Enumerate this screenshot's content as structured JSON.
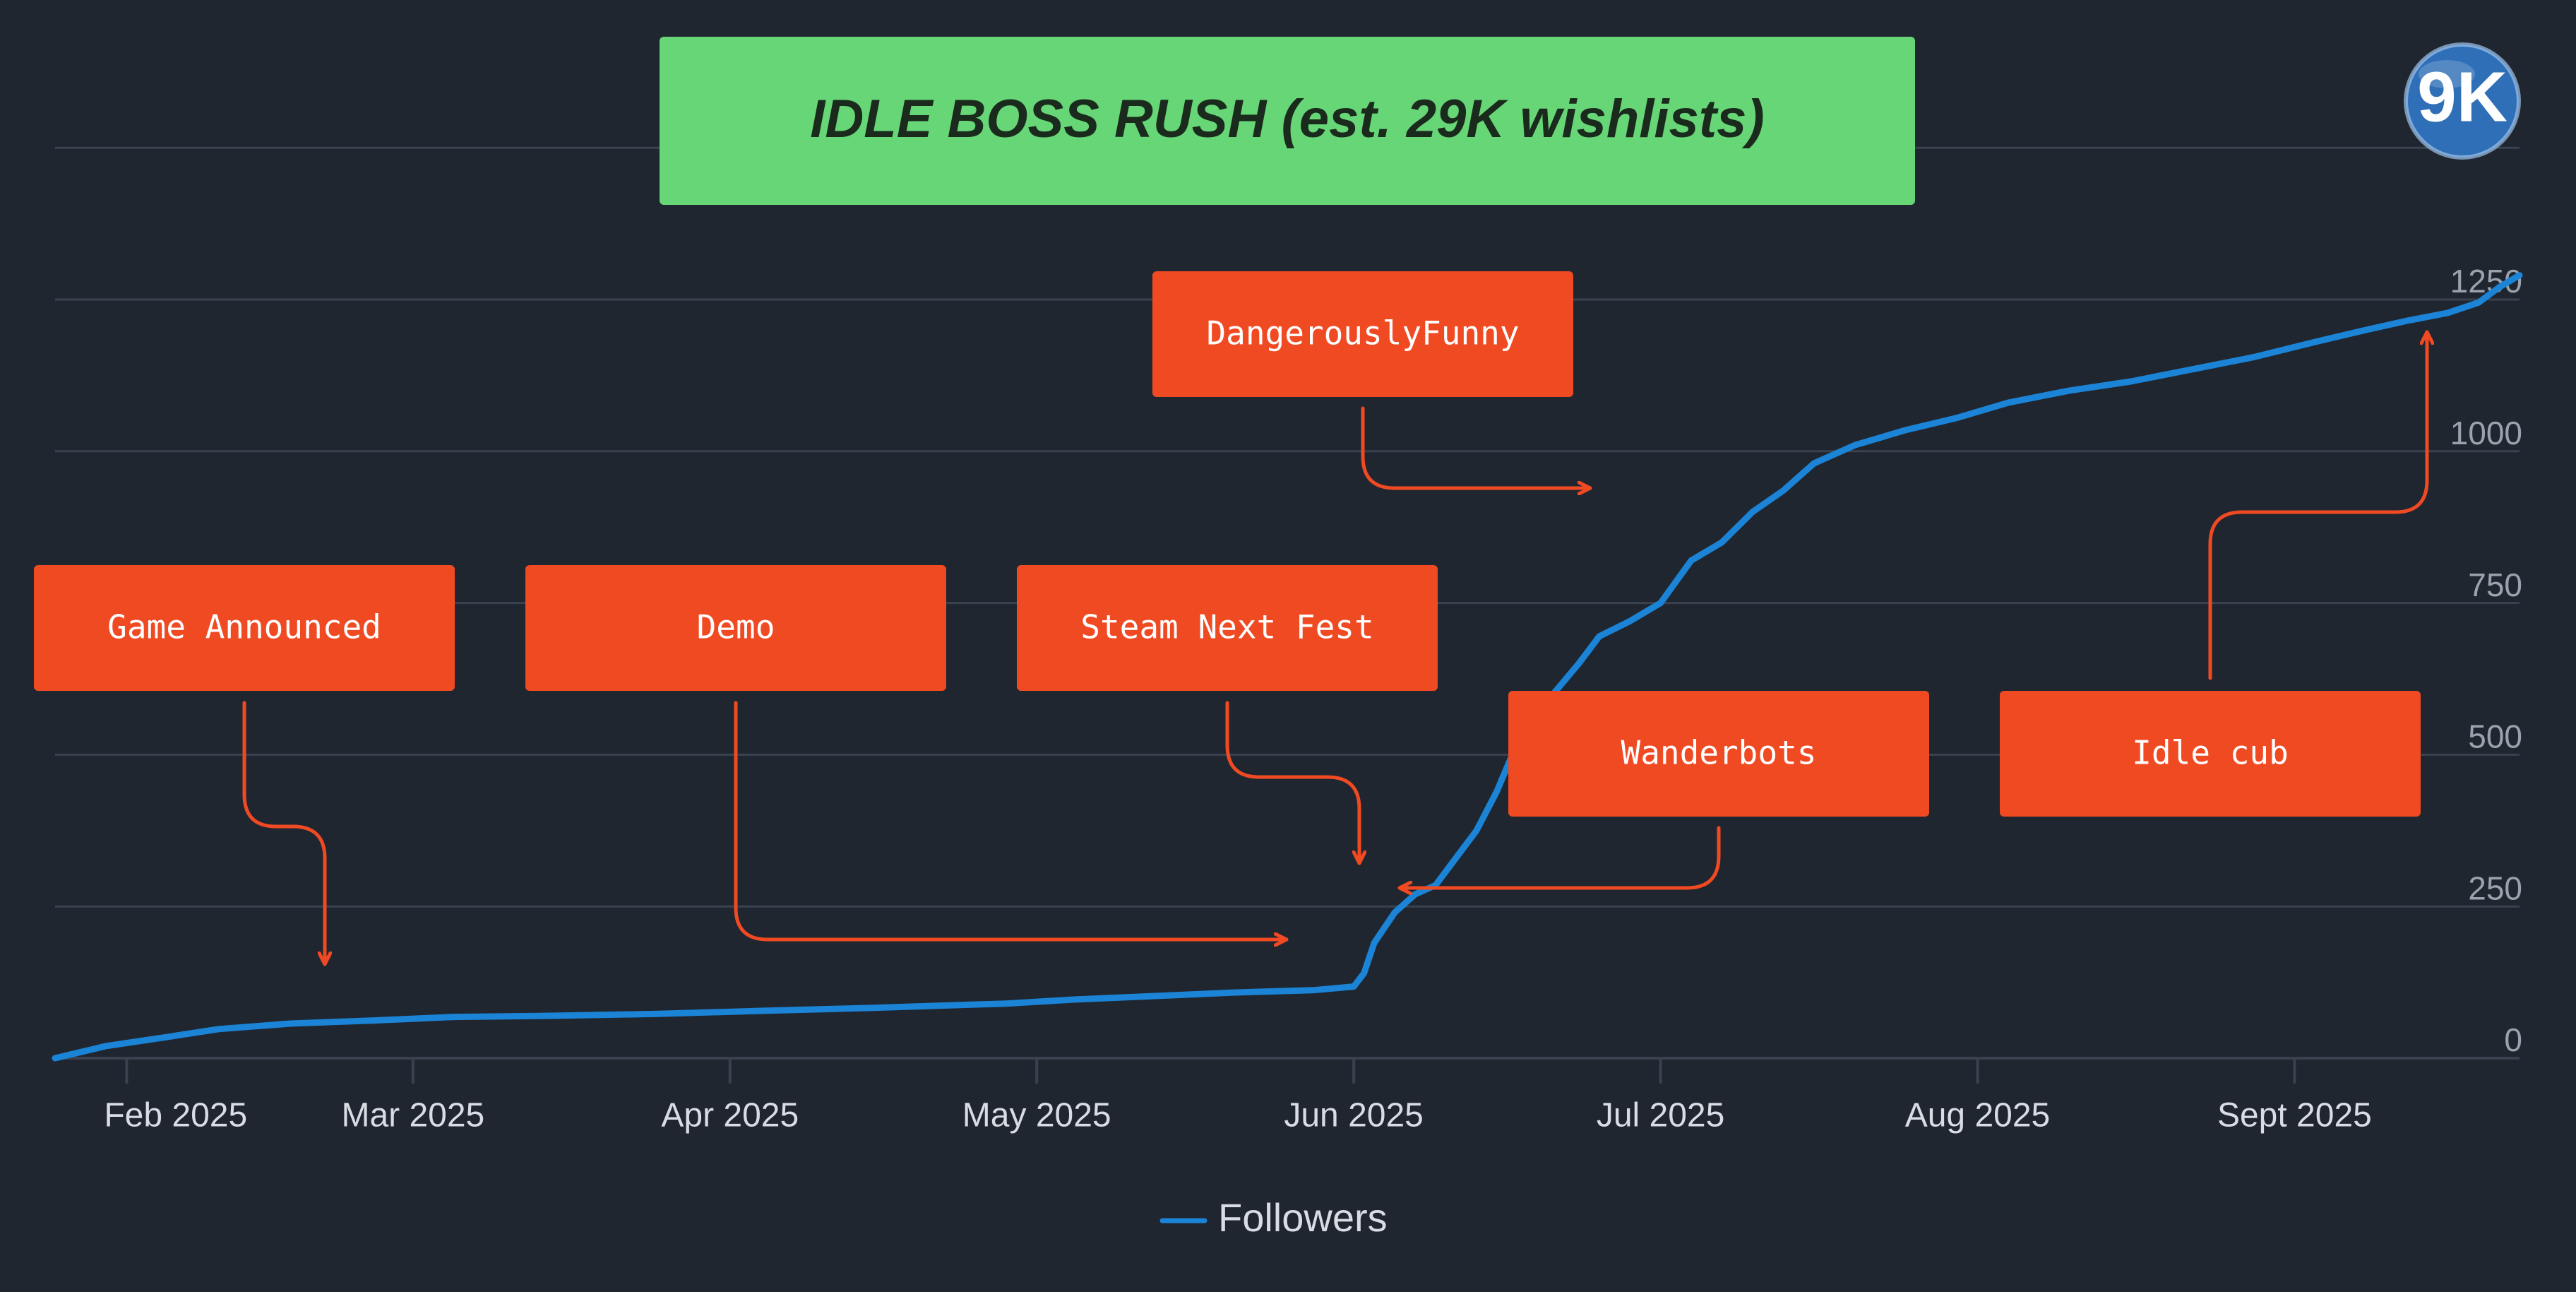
{
  "colors": {
    "background": "#1f2630",
    "grid": "#39424e",
    "axis_text": "#9aa3ad",
    "x_text": "#d8dde3",
    "line": "#1b84d6",
    "title_bg": "#67d677",
    "title_text": "#1a2a1c",
    "annotation_bg": "#f04a23",
    "annotation_text": "#ffffff",
    "arrow": "#f04a23"
  },
  "logo": {
    "text": "9K"
  },
  "chart_data": {
    "type": "line",
    "title": "IDLE BOSS RUSH (est. 29K wishlists)",
    "xlabel": "",
    "ylabel": "",
    "ylim": [
      0,
      1500
    ],
    "yticks": [
      0,
      250,
      500,
      750,
      1000,
      1250
    ],
    "ytick_labels": [
      "0",
      "250",
      "500",
      "750",
      "1000",
      "1250"
    ],
    "xlim": [
      "2025-01-25",
      "2025-09-23"
    ],
    "xtick_dates": [
      "2025-02-01",
      "2025-03-01",
      "2025-04-01",
      "2025-05-01",
      "2025-06-01",
      "2025-07-01",
      "2025-08-01",
      "2025-09-01"
    ],
    "xtick_labels": [
      "Feb 2025",
      "Mar 2025",
      "Apr 2025",
      "May 2025",
      "Jun 2025",
      "Jul 2025",
      "Aug 2025",
      "Sept 2025"
    ],
    "grid": true,
    "legend": {
      "position": "bottom-center",
      "entries": [
        "Followers"
      ]
    },
    "series": [
      {
        "name": "Followers",
        "points": [
          [
            "2025-01-25",
            0
          ],
          [
            "2025-01-30",
            20
          ],
          [
            "2025-02-05",
            35
          ],
          [
            "2025-02-10",
            48
          ],
          [
            "2025-02-17",
            57
          ],
          [
            "2025-02-25",
            62
          ],
          [
            "2025-03-05",
            68
          ],
          [
            "2025-03-15",
            70
          ],
          [
            "2025-03-25",
            73
          ],
          [
            "2025-04-04",
            78
          ],
          [
            "2025-04-15",
            83
          ],
          [
            "2025-04-28",
            90
          ],
          [
            "2025-05-05",
            97
          ],
          [
            "2025-05-12",
            102
          ],
          [
            "2025-05-20",
            108
          ],
          [
            "2025-05-28",
            112
          ],
          [
            "2025-06-01",
            118
          ],
          [
            "2025-06-02",
            140
          ],
          [
            "2025-06-03",
            190
          ],
          [
            "2025-06-05",
            240
          ],
          [
            "2025-06-07",
            270
          ],
          [
            "2025-06-09",
            285
          ],
          [
            "2025-06-11",
            330
          ],
          [
            "2025-06-13",
            375
          ],
          [
            "2025-06-15",
            440
          ],
          [
            "2025-06-17",
            520
          ],
          [
            "2025-06-20",
            590
          ],
          [
            "2025-06-23",
            650
          ],
          [
            "2025-06-25",
            695
          ],
          [
            "2025-06-28",
            720
          ],
          [
            "2025-07-01",
            750
          ],
          [
            "2025-07-04",
            820
          ],
          [
            "2025-07-07",
            850
          ],
          [
            "2025-07-10",
            900
          ],
          [
            "2025-07-13",
            935
          ],
          [
            "2025-07-16",
            980
          ],
          [
            "2025-07-20",
            1010
          ],
          [
            "2025-07-25",
            1035
          ],
          [
            "2025-07-30",
            1055
          ],
          [
            "2025-08-04",
            1080
          ],
          [
            "2025-08-10",
            1100
          ],
          [
            "2025-08-16",
            1115
          ],
          [
            "2025-08-22",
            1135
          ],
          [
            "2025-08-28",
            1155
          ],
          [
            "2025-09-03",
            1180
          ],
          [
            "2025-09-08",
            1200
          ],
          [
            "2025-09-12",
            1215
          ],
          [
            "2025-09-16",
            1228
          ],
          [
            "2025-09-19",
            1245
          ],
          [
            "2025-09-21",
            1270
          ],
          [
            "2025-09-23",
            1290
          ]
        ]
      }
    ],
    "annotations": [
      {
        "label": "Game Announced",
        "points_to": "2025-02-24"
      },
      {
        "label": "Demo",
        "points_to": "2025-05-29"
      },
      {
        "label": "Steam Next Fest",
        "points_to": "2025-06-07"
      },
      {
        "label": "DangerouslyFunny",
        "points_to": "2025-07-01"
      },
      {
        "label": "Wanderbots",
        "points_to": "2025-06-10"
      },
      {
        "label": "Idle cub",
        "points_to": "2025-09-18"
      }
    ]
  }
}
